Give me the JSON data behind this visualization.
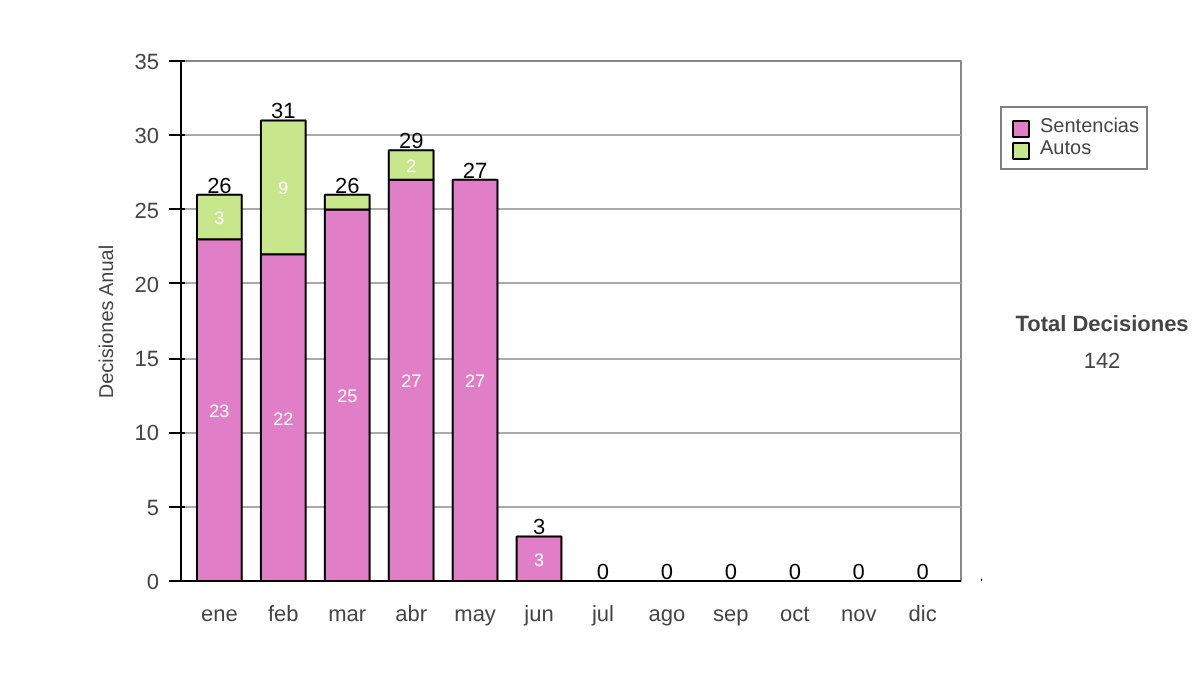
{
  "chart_data": {
    "type": "bar",
    "stacked": true,
    "ylabel": "Decisiones Anual",
    "categories": [
      "ene",
      "feb",
      "mar",
      "abr",
      "may",
      "jun",
      "jul",
      "ago",
      "sep",
      "oct",
      "nov",
      "dic"
    ],
    "series": [
      {
        "name": "Sentencias",
        "color": "#e07fc8",
        "values": [
          23,
          22,
          25,
          27,
          27,
          3,
          0,
          0,
          0,
          0,
          0,
          0
        ],
        "value_labels": [
          "23",
          "22",
          "25",
          "27",
          "27",
          "3",
          null,
          null,
          null,
          null,
          null,
          null
        ]
      },
      {
        "name": "Autos",
        "color": "#c8e68c",
        "values": [
          3,
          9,
          1,
          2,
          0,
          0,
          0,
          0,
          0,
          0,
          0,
          0
        ],
        "value_labels": [
          "3",
          "9",
          null,
          "2",
          null,
          null,
          null,
          null,
          null,
          null,
          null,
          null
        ]
      }
    ],
    "totals": [
      "26",
      "31",
      "26",
      "29",
      "27",
      "3",
      "0",
      "0",
      "0",
      "0",
      "0",
      "0"
    ],
    "ylim": [
      0,
      35
    ],
    "yticks": [
      0,
      5,
      10,
      15,
      20,
      25,
      30,
      35
    ],
    "grid": "y",
    "legend": "right",
    "annotations": [
      "Total Decisiones",
      "142"
    ]
  }
}
